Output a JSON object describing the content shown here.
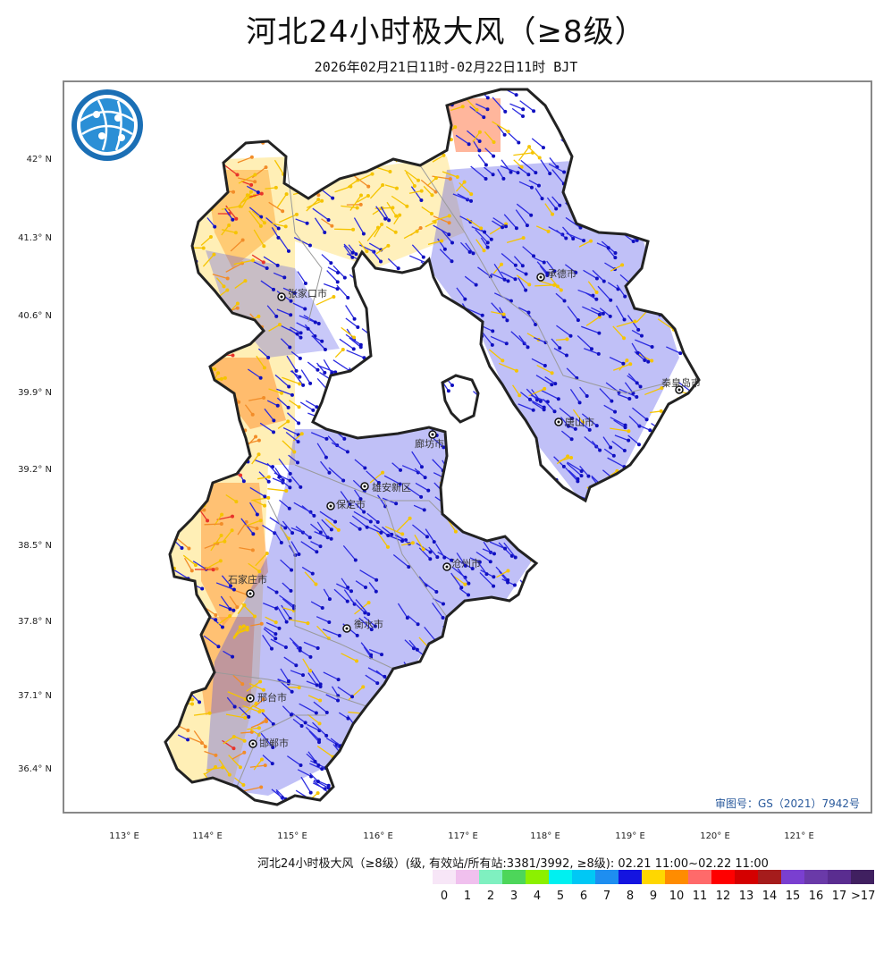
{
  "header": {
    "title": "河北24小时极大风（≥8级）",
    "subtitle": "2026年02月21日11时-02月22日11时 BJT"
  },
  "map": {
    "lat_labels": [
      "42° N",
      "41.3° N",
      "40.6° N",
      "39.9° N",
      "39.2° N",
      "38.5° N",
      "37.8° N",
      "37.1° N",
      "36.4° N"
    ],
    "lon_labels": [
      "113° E",
      "114° E",
      "115° E",
      "116° E",
      "117° E",
      "118° E",
      "119° E",
      "120° E",
      "121° E"
    ],
    "cities": [
      "张家口市",
      "承德市",
      "秦皇岛市",
      "唐山市",
      "廊坊市",
      "雄安新区",
      "保定市",
      "沧州市",
      "石家庄市",
      "衡水市",
      "邢台市",
      "邯郸市"
    ],
    "approval": "审图号：GS（2021）7942号",
    "logo_icon": "globe-network-icon",
    "colors": {
      "boundary": "#222222",
      "district": "#9a9a9a",
      "barb_strong": "#2b2be0",
      "barb_weak": "#f5c400",
      "barb_orange": "#f28c28",
      "barb_red": "#e8332a"
    }
  },
  "legend": {
    "title": "河北24小时极大风（≥8级）(级, 有效站/所有站:3381/3992, ≥8级): 02.21 11:00~02.22 11:00",
    "labels": [
      "0",
      "1",
      "2",
      "3",
      "4",
      "5",
      "6",
      "7",
      "8",
      "9",
      "10",
      "11",
      "12",
      "13",
      "14",
      "15",
      "16",
      "17",
      ">17"
    ],
    "colors": [
      "#f7e6f7",
      "#f0c0ee",
      "#7ff0c0",
      "#4dd65a",
      "#8cf000",
      "#00f0f0",
      "#00c8f5",
      "#1e8ef0",
      "#1414e0",
      "#ffd700",
      "#ff8c00",
      "#ff6a6a",
      "#ff0000",
      "#d40000",
      "#a51c1c",
      "#7a3fd0",
      "#6a3aa8",
      "#5a2d90",
      "#402060"
    ]
  }
}
